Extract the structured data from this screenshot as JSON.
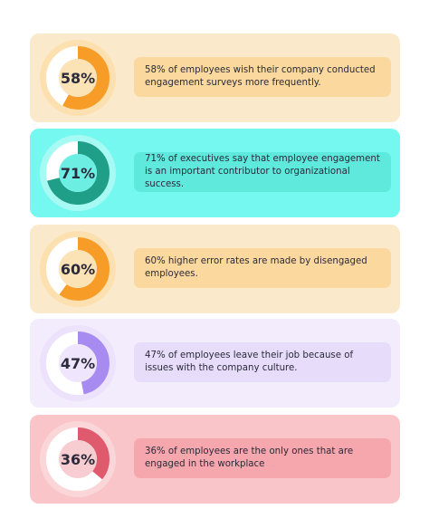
{
  "cards": [
    {
      "value": 58,
      "value_label": "58%",
      "text": "58% of employees wish their company conducted engagement surveys more frequently.",
      "card_color": "#fbe9cc",
      "ring_color": "#fde0b0",
      "accent_color": "#f79c26",
      "inner_color": "#fbe3b6",
      "box_color": "#fbd99e"
    },
    {
      "value": 71,
      "value_label": "71%",
      "text": "71% of executives say that employee engagement is an important contributor to organizational success.",
      "card_color": "#75f8ef",
      "ring_color": "#a6faf3",
      "accent_color": "#1f9e88",
      "inner_color": "#6ceee3",
      "box_color": "#5fe8dc"
    },
    {
      "value": 60,
      "value_label": "60%",
      "text": "60% higher error rates are made by disengaged employees.",
      "card_color": "#fbe9cc",
      "ring_color": "#fde0b0",
      "accent_color": "#f79c26",
      "inner_color": "#fbe3b6",
      "box_color": "#fbd99e"
    },
    {
      "value": 47,
      "value_label": "47%",
      "text": "47% of employees leave their job because of issues with the company culture.",
      "card_color": "#f3ecfc",
      "ring_color": "#ece2fc",
      "accent_color": "#a78bf0",
      "inner_color": "#efe6fd",
      "box_color": "#e8dcfb"
    },
    {
      "value": 36,
      "value_label": "36%",
      "text": "36% of employees are the only ones that are engaged in the workplace",
      "card_color": "#f9c5c8",
      "ring_color": "#fad6d9",
      "accent_color": "#e05a6e",
      "inner_color": "#f8cdd1",
      "box_color": "#f6a7ad"
    }
  ]
}
